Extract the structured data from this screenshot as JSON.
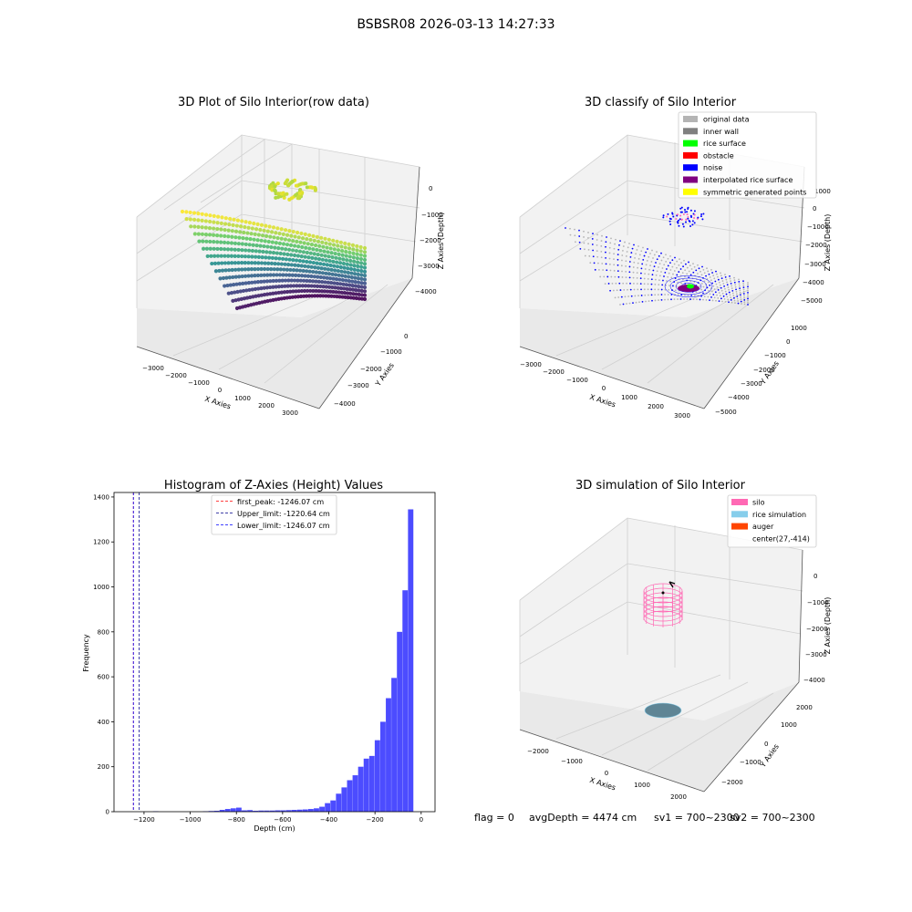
{
  "figure": {
    "suptitle": "BSBSR08 2026-03-13 14:27:33",
    "status": {
      "flag": "flag = 0",
      "avg_depth": "avgDepth = 4474 cm",
      "sv1": "sv1 = 700~2300",
      "sv2": "sv2 = 700~2300"
    }
  },
  "chart_data": [
    {
      "type": "scatter",
      "projection": "3d",
      "title": "3D Plot of Silo Interior(row data)",
      "xlabel": "X Axies",
      "ylabel": "Y Axies",
      "zlabel": "Z Axies (Depth)",
      "x_ticks": [
        "−3000",
        "−2000",
        "−1000",
        "0",
        "1000",
        "2000",
        "3000"
      ],
      "y_ticks": [
        "0",
        "−1000",
        "−2000",
        "−3000",
        "−4000"
      ],
      "z_ticks": [
        "0",
        "−1000",
        "−2000",
        "−3000",
        "−4000"
      ],
      "colormap": "viridis",
      "grid": true
    },
    {
      "type": "scatter",
      "projection": "3d",
      "title": "3D classify of Silo Interior",
      "xlabel": "X Axies",
      "ylabel": "Y Axies",
      "zlabel": "Z Axies (Depth)",
      "x_ticks": [
        "−3000",
        "−2000",
        "−1000",
        "0",
        "1000",
        "2000",
        "3000"
      ],
      "y_ticks": [
        "1000",
        "0",
        "−1000",
        "−2000",
        "−3000",
        "−4000",
        "−5000"
      ],
      "z_ticks": [
        "1000",
        "0",
        "−1000",
        "−2000",
        "−3000",
        "−4000",
        "−5000"
      ],
      "legend": {
        "position": "top-right",
        "entries": [
          {
            "label": "original data",
            "color": "#b4b4b4"
          },
          {
            "label": "inner wall",
            "color": "#808080"
          },
          {
            "label": "rice surface",
            "color": "#00ff00"
          },
          {
            "label": "obstacle",
            "color": "#ff0000"
          },
          {
            "label": "noise",
            "color": "#0000ff"
          },
          {
            "label": "interpolated rice surface",
            "color": "#800080"
          },
          {
            "label": "symmetric generated points",
            "color": "#ffff00"
          }
        ]
      },
      "grid": true
    },
    {
      "type": "bar",
      "title": "Histogram of Z-Axies (Height) Values",
      "xlabel": "Depth (cm)",
      "ylabel": "Frequency",
      "xlim": [
        -1330,
        60
      ],
      "ylim": [
        0,
        1420
      ],
      "x_ticks": [
        -1200,
        -1000,
        -800,
        -600,
        -400,
        -200,
        0
      ],
      "x_tick_labels": [
        "−1200",
        "−1000",
        "−800",
        "−600",
        "−400",
        "−200",
        "0"
      ],
      "y_ticks": [
        0,
        200,
        400,
        600,
        800,
        1000,
        1200,
        1400
      ],
      "bin_width": 24,
      "bins": [
        {
          "x": -1149,
          "value": 2
        },
        {
          "x": -933,
          "value": 2
        },
        {
          "x": -909,
          "value": 3
        },
        {
          "x": -885,
          "value": 4
        },
        {
          "x": -861,
          "value": 8
        },
        {
          "x": -837,
          "value": 12
        },
        {
          "x": -813,
          "value": 15
        },
        {
          "x": -789,
          "value": 18
        },
        {
          "x": -765,
          "value": 6
        },
        {
          "x": -741,
          "value": 7
        },
        {
          "x": -717,
          "value": 4
        },
        {
          "x": -693,
          "value": 5
        },
        {
          "x": -669,
          "value": 5
        },
        {
          "x": -645,
          "value": 5
        },
        {
          "x": -621,
          "value": 6
        },
        {
          "x": -597,
          "value": 6
        },
        {
          "x": -573,
          "value": 7
        },
        {
          "x": -549,
          "value": 8
        },
        {
          "x": -525,
          "value": 9
        },
        {
          "x": -501,
          "value": 10
        },
        {
          "x": -477,
          "value": 12
        },
        {
          "x": -453,
          "value": 15
        },
        {
          "x": -429,
          "value": 22
        },
        {
          "x": -405,
          "value": 38
        },
        {
          "x": -381,
          "value": 50
        },
        {
          "x": -357,
          "value": 80
        },
        {
          "x": -333,
          "value": 108
        },
        {
          "x": -309,
          "value": 140
        },
        {
          "x": -285,
          "value": 162
        },
        {
          "x": -261,
          "value": 200
        },
        {
          "x": -237,
          "value": 236
        },
        {
          "x": -213,
          "value": 248
        },
        {
          "x": -189,
          "value": 318
        },
        {
          "x": -165,
          "value": 400
        },
        {
          "x": -141,
          "value": 505
        },
        {
          "x": -117,
          "value": 595
        },
        {
          "x": -93,
          "value": 800
        },
        {
          "x": -69,
          "value": 985
        },
        {
          "x": -45,
          "value": 1345
        }
      ],
      "color": "#4c4cff",
      "reference_lines": [
        {
          "label": "first_peak: -1246.07 cm",
          "x": -1246.07,
          "color": "#ff0000"
        },
        {
          "label": "Upper_limit: -1220.64 cm",
          "x": -1220.64,
          "color": "#00008b"
        },
        {
          "label": "Lower_limit: -1246.07 cm",
          "x": -1246.07,
          "color": "#0000ff"
        }
      ],
      "legend": {
        "position": "top-center"
      }
    },
    {
      "type": "scatter",
      "projection": "3d",
      "title": "3D simulation of Silo Interior",
      "xlabel": "X Axies",
      "ylabel": "Y Axies",
      "zlabel": "Z Axies (Depth)",
      "x_ticks": [
        "−2000",
        "−1000",
        "0",
        "1000",
        "2000"
      ],
      "y_ticks": [
        "2000",
        "1000",
        "0",
        "−1000",
        "−2000"
      ],
      "z_ticks": [
        "0",
        "−1000",
        "−2000",
        "−3000",
        "−4000"
      ],
      "legend": {
        "position": "top-right",
        "entries": [
          {
            "label": "silo",
            "color": "#ff69b4"
          },
          {
            "label": "rice simulation",
            "color": "#87ceeb"
          },
          {
            "label": "auger",
            "color": "#ff4500"
          },
          {
            "label": "center(27,-414)",
            "color": ""
          }
        ]
      },
      "center": [
        27,
        -414
      ],
      "grid": true
    }
  ]
}
